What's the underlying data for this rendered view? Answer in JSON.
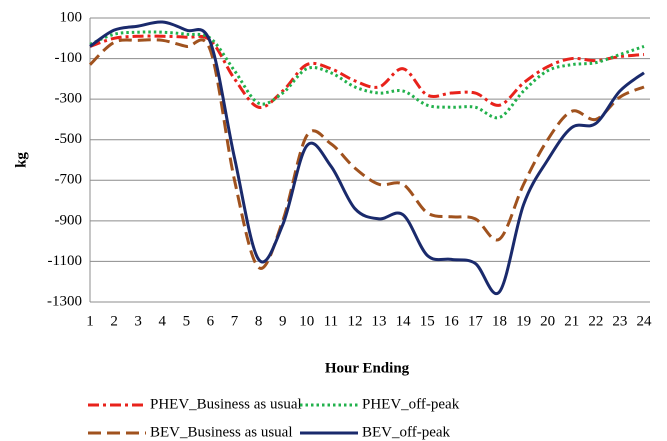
{
  "chart_data": {
    "type": "line",
    "x_label": "Hour Ending",
    "y_label": "kg",
    "x": [
      1,
      2,
      3,
      4,
      5,
      6,
      7,
      8,
      9,
      10,
      11,
      12,
      13,
      14,
      15,
      16,
      17,
      18,
      19,
      20,
      21,
      22,
      23,
      24
    ],
    "xlim": [
      1,
      24
    ],
    "xticks": [
      1,
      2,
      3,
      4,
      5,
      6,
      7,
      8,
      9,
      10,
      11,
      12,
      13,
      14,
      15,
      16,
      17,
      18,
      19,
      20,
      21,
      22,
      23,
      24
    ],
    "ylim": [
      -1300,
      100
    ],
    "yticks": [
      -1300,
      -1100,
      -900,
      -700,
      -500,
      -300,
      -100,
      100
    ],
    "grid": true,
    "legend": "bottom",
    "series": [
      {
        "name": "PHEV_Business as usual",
        "color": "#e8221b",
        "style": "dashdot",
        "values": [
          -40,
          0,
          10,
          10,
          5,
          -10,
          -200,
          -340,
          -260,
          -130,
          -150,
          -210,
          -240,
          -150,
          -280,
          -270,
          -270,
          -330,
          -220,
          -140,
          -100,
          -110,
          -90,
          -80
        ]
      },
      {
        "name": "PHEV_off-peak",
        "color": "#22b14c",
        "style": "dotted",
        "values": [
          -30,
          20,
          30,
          30,
          20,
          0,
          -160,
          -320,
          -270,
          -150,
          -170,
          -240,
          -270,
          -260,
          -330,
          -340,
          -340,
          -390,
          -260,
          -160,
          -130,
          -120,
          -80,
          -40
        ]
      },
      {
        "name": "BEV_Business as usual",
        "color": "#a0521e",
        "style": "dashed",
        "values": [
          -130,
          -20,
          -10,
          -10,
          -40,
          -60,
          -700,
          -1130,
          -900,
          -480,
          -520,
          -640,
          -720,
          -720,
          -860,
          -880,
          -890,
          -990,
          -720,
          -500,
          -360,
          -400,
          -290,
          -240
        ]
      },
      {
        "name": "BEV_off-peak",
        "color": "#1a2a6c",
        "style": "solid",
        "values": [
          -40,
          40,
          60,
          80,
          40,
          -20,
          -590,
          -1090,
          -920,
          -530,
          -630,
          -840,
          -890,
          -870,
          -1070,
          -1090,
          -1110,
          -1250,
          -820,
          -600,
          -440,
          -420,
          -260,
          -170
        ]
      }
    ]
  }
}
